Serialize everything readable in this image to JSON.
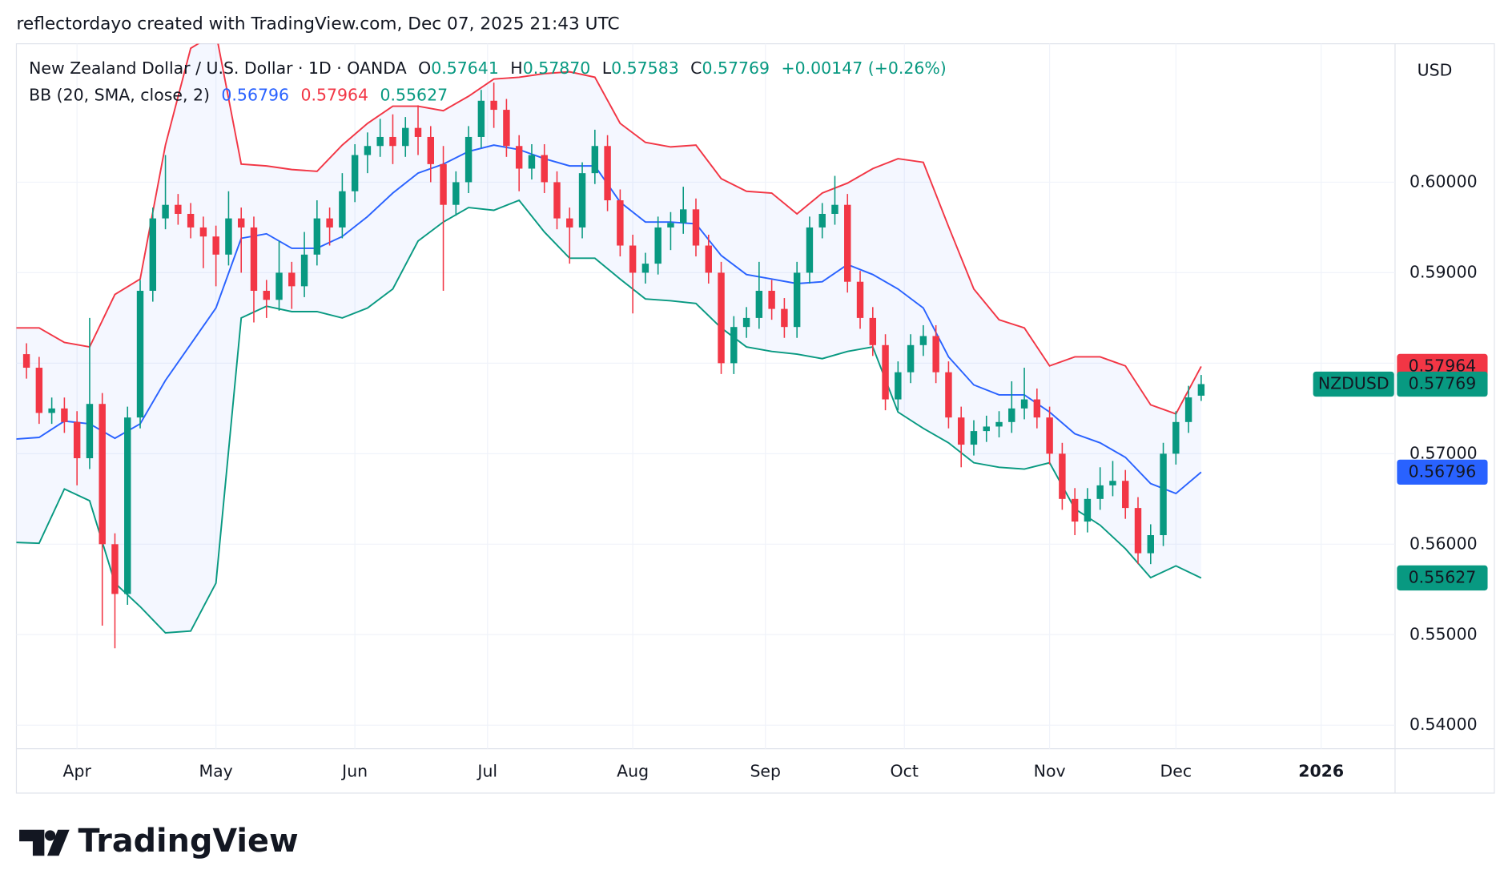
{
  "attribution": "reflectordayo created with TradingView.com, Dec 07, 2025 21:43 UTC",
  "brand": "TradingView",
  "chart_data": {
    "type": "candlestick",
    "legend": {
      "symbol_title": "New Zealand Dollar / U.S. Dollar · 1D · OANDA",
      "ohlc": [
        {
          "label": "O",
          "value": "0.57641"
        },
        {
          "label": "H",
          "value": "0.57870"
        },
        {
          "label": "L",
          "value": "0.57583"
        },
        {
          "label": "C",
          "value": "0.57769"
        }
      ],
      "change": "+0.00147 (+0.26%)",
      "indicator": "BB (20, SMA, close, 2)"
    },
    "currency": "USD",
    "symbol_tag": "NZDUSD",
    "up_color": "#089981",
    "down_color": "#f23645",
    "xlim": [
      -9.6,
      208.7
    ],
    "xticks": [
      {
        "value": 0,
        "label": "Apr"
      },
      {
        "value": 22,
        "label": "May"
      },
      {
        "value": 44,
        "label": "Jun"
      },
      {
        "value": 65,
        "label": "Jul"
      },
      {
        "value": 88,
        "label": "Aug"
      },
      {
        "value": 109,
        "label": "Sep"
      },
      {
        "value": 131,
        "label": "Oct"
      },
      {
        "value": 154,
        "label": "Nov"
      },
      {
        "value": 174,
        "label": "Dec"
      },
      {
        "value": 197,
        "label": "2026"
      }
    ],
    "ylim": [
      0.5374,
      0.6153
    ],
    "yticks": [
      {
        "value": 0.54,
        "label": "0.54000"
      },
      {
        "value": 0.55,
        "label": "0.55000"
      },
      {
        "value": 0.56,
        "label": "0.56000"
      },
      {
        "value": 0.57,
        "label": "0.57000"
      },
      {
        "value": 0.58,
        "label": "0.58000"
      },
      {
        "value": 0.59,
        "label": "0.59000"
      },
      {
        "value": 0.6,
        "label": "0.60000"
      }
    ],
    "grid": true,
    "x": [
      -8,
      -6,
      -4,
      -2,
      0,
      2,
      4,
      6,
      8,
      10,
      12,
      14,
      16,
      18,
      20,
      22,
      24,
      26,
      28,
      30,
      32,
      34,
      36,
      38,
      40,
      42,
      44,
      46,
      48,
      50,
      52,
      54,
      56,
      58,
      60,
      62,
      64,
      66,
      68,
      70,
      72,
      74,
      76,
      78,
      80,
      82,
      84,
      86,
      88,
      90,
      92,
      94,
      96,
      98,
      100,
      102,
      104,
      106,
      108,
      110,
      112,
      114,
      116,
      118,
      120,
      122,
      124,
      126,
      128,
      130,
      132,
      134,
      136,
      138,
      140,
      142,
      144,
      146,
      148,
      150,
      152,
      154,
      156,
      158,
      160,
      162,
      164,
      166,
      168,
      170,
      172,
      174,
      176,
      178
    ],
    "open": [
      0.581,
      0.5795,
      0.5745,
      0.575,
      0.5735,
      0.5695,
      0.5755,
      0.56,
      0.5545,
      0.574,
      0.588,
      0.596,
      0.5975,
      0.5965,
      0.595,
      0.594,
      0.592,
      0.596,
      0.595,
      0.588,
      0.587,
      0.59,
      0.5885,
      0.592,
      0.596,
      0.595,
      0.599,
      0.603,
      0.604,
      0.605,
      0.604,
      0.606,
      0.605,
      0.602,
      0.5975,
      0.6,
      0.605,
      0.609,
      0.608,
      0.604,
      0.6015,
      0.603,
      0.6,
      0.596,
      0.595,
      0.601,
      0.604,
      0.598,
      0.593,
      0.59,
      0.591,
      0.595,
      0.5955,
      0.597,
      0.593,
      0.59,
      0.58,
      0.584,
      0.585,
      0.588,
      0.586,
      0.584,
      0.59,
      0.595,
      0.5965,
      0.5975,
      0.589,
      0.585,
      0.582,
      0.576,
      0.579,
      0.582,
      0.583,
      0.579,
      0.574,
      0.571,
      0.5725,
      0.573,
      0.5735,
      0.575,
      0.576,
      0.574,
      0.57,
      0.565,
      0.5625,
      0.565,
      0.5665,
      0.567,
      0.564,
      0.559,
      0.561,
      0.57,
      0.5735,
      0.57641
    ],
    "high": [
      0.5822,
      0.5807,
      0.5762,
      0.5762,
      0.5747,
      0.585,
      0.5767,
      0.5612,
      0.5752,
      0.5892,
      0.5972,
      0.603,
      0.5987,
      0.5977,
      0.5962,
      0.5952,
      0.599,
      0.5972,
      0.5962,
      0.5892,
      0.5935,
      0.5912,
      0.5945,
      0.598,
      0.5972,
      0.601,
      0.6042,
      0.6055,
      0.607,
      0.6075,
      0.6072,
      0.6085,
      0.6062,
      0.604,
      0.6012,
      0.6062,
      0.6102,
      0.611,
      0.6092,
      0.6052,
      0.6042,
      0.6042,
      0.6012,
      0.5972,
      0.6022,
      0.6058,
      0.6052,
      0.5992,
      0.5942,
      0.5922,
      0.5962,
      0.5967,
      0.5995,
      0.5982,
      0.5942,
      0.5912,
      0.5852,
      0.5862,
      0.5912,
      0.5892,
      0.5872,
      0.5912,
      0.5962,
      0.5977,
      0.6007,
      0.5987,
      0.5902,
      0.5862,
      0.5832,
      0.5802,
      0.5832,
      0.5842,
      0.5842,
      0.5802,
      0.5752,
      0.5737,
      0.5742,
      0.5747,
      0.578,
      0.5795,
      0.5772,
      0.5752,
      0.5712,
      0.5662,
      0.5662,
      0.5685,
      0.5692,
      0.5682,
      0.5652,
      0.5622,
      0.5712,
      0.5747,
      0.5775,
      0.5787
    ],
    "low": [
      0.5783,
      0.5733,
      0.5733,
      0.5723,
      0.5665,
      0.5683,
      0.551,
      0.5485,
      0.5533,
      0.5728,
      0.5868,
      0.5948,
      0.5953,
      0.5938,
      0.5905,
      0.5885,
      0.5908,
      0.59,
      0.5845,
      0.585,
      0.5858,
      0.586,
      0.5873,
      0.5908,
      0.593,
      0.5938,
      0.5978,
      0.601,
      0.6028,
      0.602,
      0.6028,
      0.603,
      0.6,
      0.588,
      0.5963,
      0.5988,
      0.6038,
      0.606,
      0.6028,
      0.599,
      0.6003,
      0.5988,
      0.5948,
      0.591,
      0.5938,
      0.5998,
      0.5968,
      0.5918,
      0.5855,
      0.5888,
      0.5898,
      0.5925,
      0.5943,
      0.5918,
      0.5888,
      0.5788,
      0.5788,
      0.5828,
      0.5838,
      0.5848,
      0.5828,
      0.5828,
      0.5888,
      0.5938,
      0.5953,
      0.5878,
      0.5838,
      0.5808,
      0.5748,
      0.5748,
      0.5778,
      0.5808,
      0.5778,
      0.5728,
      0.5685,
      0.5698,
      0.5713,
      0.5718,
      0.5723,
      0.5738,
      0.5728,
      0.5688,
      0.5638,
      0.561,
      0.5613,
      0.5638,
      0.5653,
      0.5628,
      0.5578,
      0.5578,
      0.5598,
      0.5688,
      0.5723,
      0.57583
    ],
    "close": [
      0.5795,
      0.5745,
      0.575,
      0.5735,
      0.5695,
      0.5755,
      0.56,
      0.5545,
      0.574,
      0.588,
      0.596,
      0.5975,
      0.5965,
      0.595,
      0.594,
      0.592,
      0.596,
      0.595,
      0.588,
      0.587,
      0.59,
      0.5885,
      0.592,
      0.596,
      0.595,
      0.599,
      0.603,
      0.604,
      0.605,
      0.604,
      0.606,
      0.605,
      0.602,
      0.5975,
      0.6,
      0.605,
      0.609,
      0.608,
      0.604,
      0.6015,
      0.603,
      0.6,
      0.596,
      0.595,
      0.601,
      0.604,
      0.598,
      0.593,
      0.59,
      0.591,
      0.595,
      0.5955,
      0.597,
      0.593,
      0.59,
      0.58,
      0.584,
      0.585,
      0.588,
      0.586,
      0.584,
      0.59,
      0.595,
      0.5965,
      0.5975,
      0.589,
      0.585,
      0.582,
      0.576,
      0.579,
      0.582,
      0.583,
      0.579,
      0.574,
      0.571,
      0.5725,
      0.573,
      0.5735,
      0.575,
      0.576,
      0.574,
      0.57,
      0.565,
      0.5625,
      0.565,
      0.5665,
      0.567,
      0.564,
      0.559,
      0.561,
      0.57,
      0.5735,
      0.57622,
      0.57769
    ],
    "bands": {
      "x": [
        -10,
        -6,
        -2,
        2,
        6,
        10,
        14,
        18,
        22,
        26,
        30,
        34,
        38,
        42,
        46,
        50,
        54,
        58,
        62,
        66,
        70,
        74,
        78,
        82,
        86,
        90,
        94,
        98,
        102,
        106,
        110,
        114,
        118,
        122,
        126,
        130,
        134,
        138,
        142,
        146,
        150,
        154,
        158,
        162,
        166,
        170,
        174,
        178
      ],
      "series": [
        {
          "name": "upper",
          "color": "#f23645",
          "values": [
            0.5839,
            0.5839,
            0.5823,
            0.5818,
            0.5876,
            0.5893,
            0.6041,
            0.6148,
            0.6165,
            0.602,
            0.6018,
            0.6014,
            0.6012,
            0.6041,
            0.6065,
            0.6084,
            0.6084,
            0.6079,
            0.6095,
            0.6114,
            0.6116,
            0.612,
            0.6122,
            0.6116,
            0.6065,
            0.6044,
            0.6039,
            0.6041,
            0.6004,
            0.599,
            0.5988,
            0.5965,
            0.5988,
            0.5999,
            0.6015,
            0.6026,
            0.6022,
            0.5951,
            0.5882,
            0.5848,
            0.5839,
            0.5797,
            0.5807,
            0.5807,
            0.5797,
            0.5754,
            0.5744,
            0.57964
          ]
        },
        {
          "name": "basis",
          "color": "#2962ff",
          "values": [
            0.5716,
            0.5718,
            0.5736,
            0.5733,
            0.5717,
            0.5733,
            0.5781,
            0.5821,
            0.5861,
            0.5938,
            0.5943,
            0.5927,
            0.5927,
            0.594,
            0.5962,
            0.5988,
            0.601,
            0.602,
            0.6034,
            0.6041,
            0.6036,
            0.6026,
            0.6018,
            0.6018,
            0.5978,
            0.5956,
            0.5956,
            0.5954,
            0.5919,
            0.5898,
            0.5893,
            0.5888,
            0.589,
            0.5909,
            0.5898,
            0.5882,
            0.5861,
            0.5807,
            0.5776,
            0.5765,
            0.5765,
            0.5746,
            0.5722,
            0.5712,
            0.5696,
            0.5667,
            0.5656,
            0.56796
          ]
        },
        {
          "name": "lower",
          "color": "#089981",
          "values": [
            0.5602,
            0.5601,
            0.5661,
            0.5648,
            0.5557,
            0.5531,
            0.5502,
            0.5504,
            0.5557,
            0.585,
            0.5863,
            0.5857,
            0.5857,
            0.585,
            0.5861,
            0.5882,
            0.5935,
            0.5956,
            0.5972,
            0.5969,
            0.598,
            0.5945,
            0.5916,
            0.5916,
            0.5893,
            0.5871,
            0.5869,
            0.5866,
            0.5839,
            0.5818,
            0.5813,
            0.581,
            0.5805,
            0.5813,
            0.5818,
            0.5746,
            0.5728,
            0.5712,
            0.569,
            0.5685,
            0.5683,
            0.569,
            0.5639,
            0.5621,
            0.5595,
            0.5563,
            0.5576,
            0.55627
          ]
        }
      ]
    }
  }
}
